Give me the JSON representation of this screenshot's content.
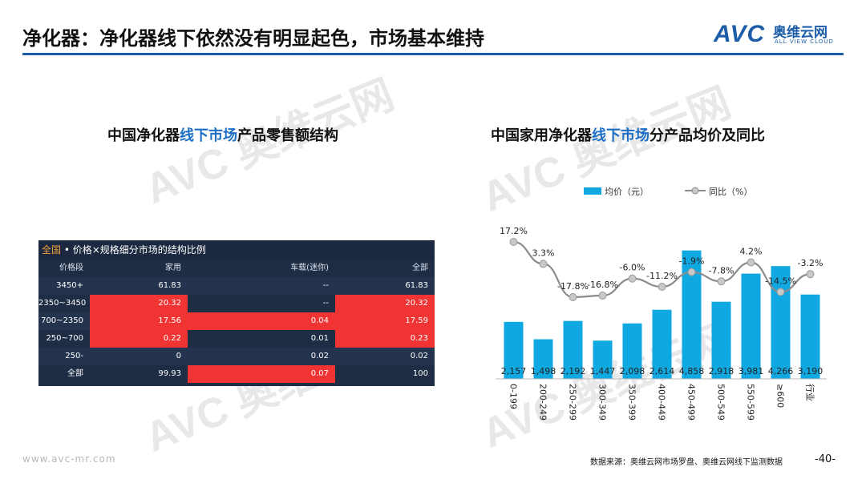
{
  "slide": {
    "title": "净化器：净化器线下依然没有明显起色，市场基本维持",
    "logo_text": "AVC",
    "logo_cn": "奥维云网",
    "logo_en": "ALL VIEW CLOUD",
    "watermark": "AVC 奥维云网"
  },
  "left": {
    "subtitle_a": "中国净化器",
    "subtitle_hl": "线下市场",
    "subtitle_b": "产品零售额结构",
    "table": {
      "title_prefix": "全国",
      "title_rest": " • 价格×规格细分市场的结构比例",
      "headers": [
        "价格段",
        "家用",
        "车载(迷你)",
        "全部"
      ],
      "rows": [
        [
          "3450+",
          "61.83",
          "--",
          "61.83"
        ],
        [
          "2350~3450",
          "20.32",
          "--",
          "20.32"
        ],
        [
          "700~2350",
          "17.56",
          "0.04",
          "17.59"
        ],
        [
          "250~700",
          "0.22",
          "0.01",
          "0.23"
        ],
        [
          "250-",
          "0",
          "0.02",
          "0.02"
        ],
        [
          "全部",
          "99.93",
          "0.07",
          "100"
        ]
      ]
    }
  },
  "right": {
    "subtitle_a": "中国家用净化器",
    "subtitle_hl": "线下市场",
    "subtitle_b": "分产品均价及同比"
  },
  "chart_data": {
    "type": "bar",
    "categories": [
      "0-199",
      "200-249",
      "250-299",
      "300-349",
      "350-399",
      "400-449",
      "450-499",
      "500-549",
      "550-599",
      "≥600",
      "行业"
    ],
    "series": [
      {
        "name": "均价（元）",
        "type": "bar",
        "values": [
          2157,
          1498,
          2192,
          1447,
          2098,
          2614,
          4858,
          2918,
          3981,
          4266,
          3190
        ],
        "labels": [
          "2,157",
          "1,498",
          "2,192",
          "1,447",
          "2,098",
          "2,614",
          "4,858",
          "2,918",
          "3,981",
          "4,266",
          "3,190"
        ]
      },
      {
        "name": "同比（%）",
        "type": "line",
        "values": [
          17.2,
          3.3,
          -17.8,
          -16.8,
          -6.0,
          -11.2,
          -1.9,
          -7.8,
          4.2,
          -14.5,
          -3.2
        ],
        "labels": [
          "17.2%",
          "3.3%",
          "-17.8%",
          "-16.8%",
          "-6.0%",
          "-11.2%",
          "-1.9%",
          "-7.8%",
          "4.2%",
          "-14.5%",
          "-3.2%"
        ]
      }
    ],
    "colors": {
      "bar": "#0fa8e0",
      "line": "#8c8c8c",
      "marker": "#c8c8c8"
    },
    "legend_position": "top"
  },
  "footer": {
    "url": "www.avc-mr.com",
    "source": "数据来源：奥维云网市场罗盘、奥维云网线下监测数据",
    "page": "-40-"
  }
}
